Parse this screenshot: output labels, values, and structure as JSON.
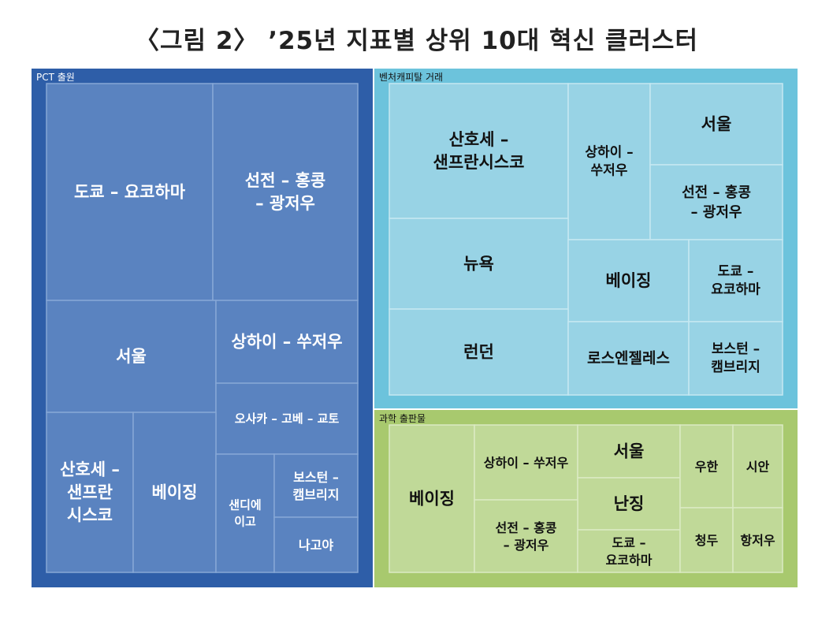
{
  "title": "〈그림 2〉 ’25년 지표별 상위 10대 혁신 클러스터",
  "chart_data": {
    "type": "treemap",
    "groups": [
      {
        "name": "PCT 출원",
        "colors": {
          "frame": "#2e5ea8",
          "tile": "#5a83c0",
          "line": "#86a7d6",
          "text": "#ffffff"
        },
        "items": [
          {
            "label": "도쿄 – 요코하마"
          },
          {
            "label": "선전 – 홍콩\n– 광저우"
          },
          {
            "label": "서울"
          },
          {
            "label": "상하이 – 쑤저우"
          },
          {
            "label": "오사카 – 고베 – 교토"
          },
          {
            "label": "산호세 –\n샌프란\n시스코"
          },
          {
            "label": "베이징"
          },
          {
            "label": "샌디에\n이고"
          },
          {
            "label": "보스턴 –\n캠브리지"
          },
          {
            "label": "나고야"
          }
        ]
      },
      {
        "name": "벤처캐피탈 거래",
        "colors": {
          "frame": "#6cc3dc",
          "tile": "#98d3e5",
          "line": "#c5e8f2",
          "text": "#111111"
        },
        "items": [
          {
            "label": "산호세 –\n샌프란시스코"
          },
          {
            "label": "상하이 –\n쑤저우"
          },
          {
            "label": "서울"
          },
          {
            "label": "선전 – 홍콩\n– 광저우"
          },
          {
            "label": "뉴욕"
          },
          {
            "label": "베이징"
          },
          {
            "label": "도쿄 –\n요코하마"
          },
          {
            "label": "런던"
          },
          {
            "label": "로스엔젤레스"
          },
          {
            "label": "보스턴 –\n캠브리지"
          }
        ]
      },
      {
        "name": "과학 출판물",
        "colors": {
          "frame": "#a8c96e",
          "tile": "#c0d998",
          "line": "#dbeac3",
          "text": "#111111"
        },
        "items": [
          {
            "label": "베이징"
          },
          {
            "label": "상하이 – 쑤저우"
          },
          {
            "label": "서울"
          },
          {
            "label": "난징"
          },
          {
            "label": "선전 – 홍콩\n– 광저우"
          },
          {
            "label": "도쿄 –\n요코하마"
          },
          {
            "label": "우한"
          },
          {
            "label": "시안"
          },
          {
            "label": "청두"
          },
          {
            "label": "항저우"
          }
        ]
      }
    ]
  }
}
